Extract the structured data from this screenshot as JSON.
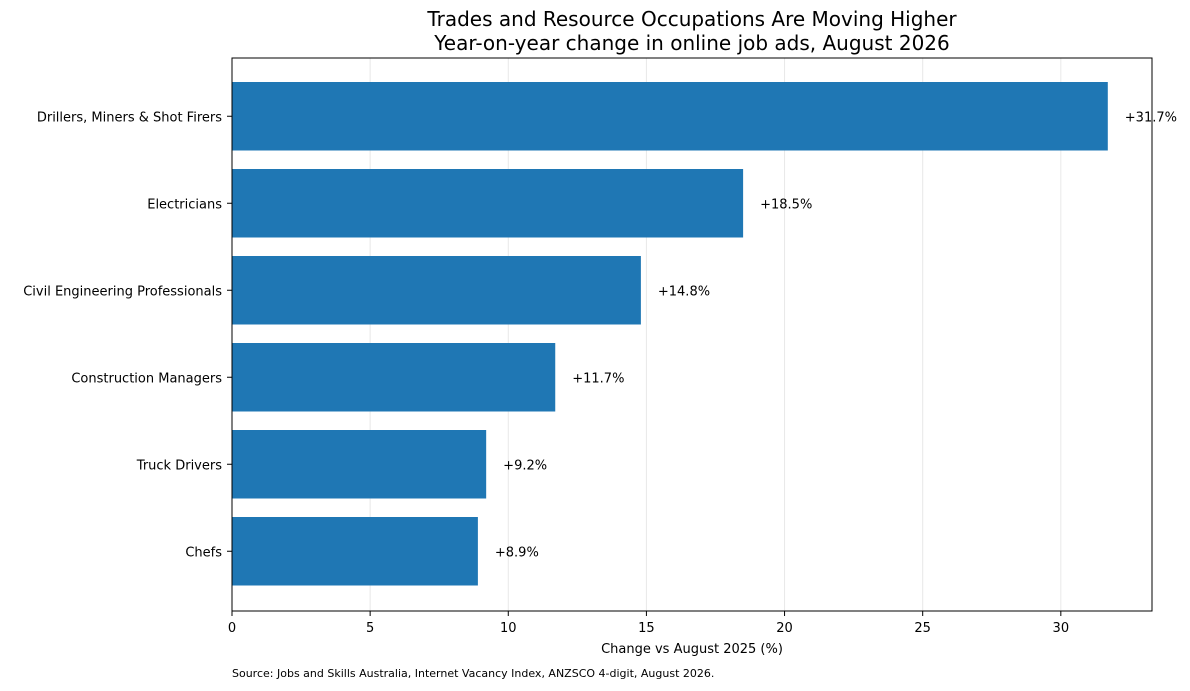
{
  "chart_data": {
    "type": "bar",
    "orientation": "horizontal",
    "title": "Trades and Resource Occupations Are Moving Higher",
    "subtitle": "Year-on-year change in online job ads, August 2026",
    "xlabel": "Change vs August 2025 (%)",
    "ylabel": "",
    "categories": [
      "Drillers, Miners & Shot Firers",
      "Electricians",
      "Civil Engineering Professionals",
      "Construction Managers",
      "Truck Drivers",
      "Chefs"
    ],
    "values": [
      31.7,
      18.5,
      14.8,
      11.7,
      9.2,
      8.9
    ],
    "value_labels": [
      "+31.7%",
      "+18.5%",
      "+14.8%",
      "+11.7%",
      "+9.2%",
      "+8.9%"
    ],
    "xlim": [
      0,
      33.3
    ],
    "xticks": [
      0,
      5,
      10,
      15,
      20,
      25,
      30
    ],
    "grid": "x",
    "legend": "none",
    "colors": {
      "bar": "#1f77b4",
      "grid": "#e8e8e8",
      "axis": "#000000"
    }
  },
  "source": "Source: Jobs and Skills Australia, Internet Vacancy Index, ANZSCO 4-digit, August 2026."
}
